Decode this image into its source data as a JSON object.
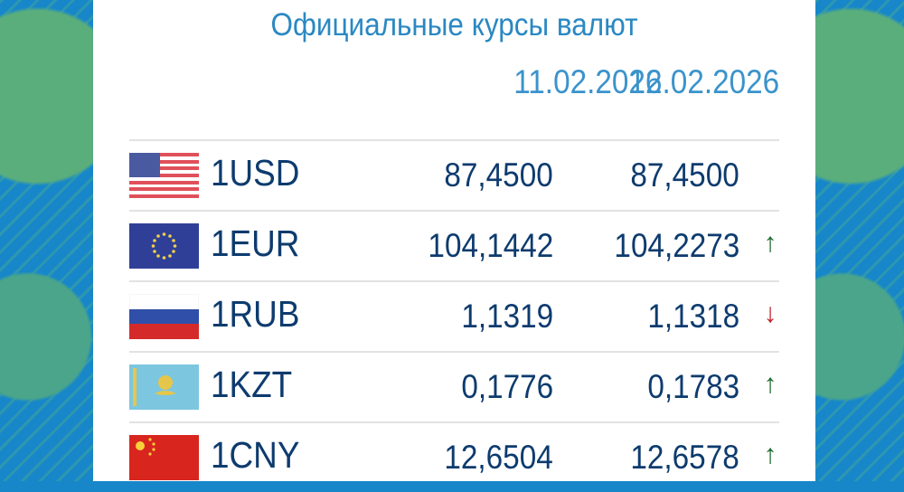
{
  "title": "Официальные курсы валют",
  "dates": [
    "11.02.2026",
    "12.02.2026"
  ],
  "colors": {
    "up": "#1e6b2e",
    "down": "#c0222c",
    "text": "#0d3b6e",
    "header": "#2a88c2"
  },
  "rates": [
    {
      "code": "1USD",
      "flag": "us-flag-icon",
      "prev": "87,4500",
      "curr": "87,4500",
      "trend": "",
      "arrow": ""
    },
    {
      "code": "1EUR",
      "flag": "eu-flag-icon",
      "prev": "104,1442",
      "curr": "104,2273",
      "trend": "up",
      "arrow": "↑"
    },
    {
      "code": "1RUB",
      "flag": "ru-flag-icon",
      "prev": "1,1319",
      "curr": "1,1318",
      "trend": "down",
      "arrow": "↓"
    },
    {
      "code": "1KZT",
      "flag": "kz-flag-icon",
      "prev": "0,1776",
      "curr": "0,1783",
      "trend": "up",
      "arrow": "↑"
    },
    {
      "code": "1CNY",
      "flag": "cn-flag-icon",
      "prev": "12,6504",
      "curr": "12,6578",
      "trend": "up",
      "arrow": "↑"
    }
  ]
}
